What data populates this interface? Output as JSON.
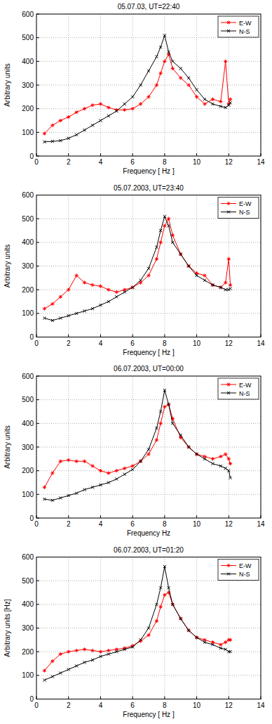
{
  "chart_data": [
    {
      "type": "line",
      "title": "05.07.03, UT=22:40",
      "x_label": "Frequency [ Hz ]",
      "y_label": "Arbitrary units",
      "x": [
        0.5,
        1,
        1.5,
        2,
        2.5,
        3,
        3.5,
        4,
        4.5,
        5,
        5.5,
        6,
        6.5,
        7,
        7.5,
        7.75,
        8,
        8.25,
        8.5,
        9,
        9.5,
        10,
        10.5,
        11,
        11.5,
        11.8,
        12,
        12.1
      ],
      "series": [
        {
          "name": "E-W",
          "color": "#ff0000",
          "marker": "star",
          "line_style": "solid",
          "values": [
            95,
            130,
            150,
            165,
            185,
            200,
            215,
            220,
            205,
            195,
            195,
            200,
            220,
            250,
            300,
            350,
            400,
            430,
            370,
            330,
            300,
            250,
            220,
            240,
            230,
            400,
            220,
            240
          ]
        },
        {
          "name": "N-S",
          "color": "#000000",
          "marker": "x",
          "line_style": "solid",
          "values": [
            60,
            62,
            65,
            75,
            90,
            110,
            130,
            150,
            170,
            190,
            220,
            250,
            300,
            360,
            420,
            460,
            510,
            440,
            400,
            370,
            330,
            280,
            240,
            220,
            210,
            205,
            215,
            225
          ]
        }
      ],
      "xlim": [
        0,
        14
      ],
      "ylim": [
        0,
        600
      ],
      "xticks": [
        0,
        2,
        4,
        6,
        8,
        10,
        12,
        14
      ],
      "yticks": [
        0,
        100,
        200,
        300,
        400,
        500,
        600
      ],
      "grid": true,
      "legend": "top-right"
    },
    {
      "type": "line",
      "title": "05.07.2003, UT=23:40",
      "x_label": "Frequency [ Hz ]",
      "y_label": "Arbitrary units",
      "x": [
        0.5,
        1,
        1.5,
        2,
        2.5,
        3,
        3.5,
        4,
        4.5,
        5,
        5.5,
        6,
        6.5,
        7,
        7.5,
        7.75,
        8,
        8.25,
        8.5,
        9,
        9.5,
        10,
        10.5,
        11,
        11.5,
        11.8,
        12,
        12.1
      ],
      "series": [
        {
          "name": "E-W",
          "color": "#ff0000",
          "marker": "star",
          "line_style": "solid",
          "values": [
            120,
            140,
            170,
            200,
            260,
            230,
            220,
            215,
            200,
            190,
            200,
            210,
            230,
            260,
            330,
            400,
            470,
            500,
            430,
            350,
            300,
            270,
            260,
            220,
            210,
            230,
            330,
            220
          ]
        },
        {
          "name": "N-S",
          "color": "#000000",
          "marker": "x",
          "line_style": "solid",
          "values": [
            80,
            70,
            80,
            90,
            100,
            110,
            120,
            135,
            150,
            170,
            190,
            210,
            240,
            290,
            380,
            450,
            510,
            470,
            400,
            350,
            300,
            260,
            240,
            220,
            210,
            200,
            200,
            205
          ]
        }
      ],
      "xlim": [
        0,
        14
      ],
      "ylim": [
        0,
        600
      ],
      "xticks": [
        0,
        2,
        4,
        6,
        8,
        10,
        12,
        14
      ],
      "yticks": [
        0,
        100,
        200,
        300,
        400,
        500,
        600
      ],
      "grid": true,
      "legend": "top-right"
    },
    {
      "type": "line",
      "title": "06.07.2003, UT=00:00",
      "x_label": "Frequency Hz",
      "y_label": "Arbitrary units",
      "x": [
        0.5,
        1,
        1.5,
        2,
        2.5,
        3,
        3.5,
        4,
        4.5,
        5,
        5.5,
        6,
        6.5,
        7,
        7.5,
        7.75,
        8,
        8.25,
        8.5,
        9,
        9.5,
        10,
        10.5,
        11,
        11.5,
        11.8,
        12,
        12.1
      ],
      "series": [
        {
          "name": "E-W",
          "color": "#ff0000",
          "marker": "star",
          "line_style": "solid",
          "values": [
            130,
            190,
            240,
            245,
            240,
            240,
            220,
            200,
            190,
            200,
            210,
            220,
            240,
            270,
            330,
            400,
            470,
            480,
            420,
            340,
            300,
            270,
            260,
            250,
            260,
            270,
            250,
            230
          ]
        },
        {
          "name": "N-S",
          "color": "#000000",
          "marker": "x",
          "line_style": "solid",
          "values": [
            80,
            75,
            85,
            95,
            105,
            120,
            130,
            140,
            150,
            165,
            185,
            205,
            240,
            290,
            380,
            450,
            540,
            480,
            400,
            350,
            300,
            270,
            250,
            230,
            220,
            210,
            200,
            170
          ]
        }
      ],
      "xlim": [
        0,
        14
      ],
      "ylim": [
        0,
        600
      ],
      "xticks": [
        0,
        2,
        4,
        6,
        8,
        10,
        12,
        14
      ],
      "yticks": [
        0,
        100,
        200,
        300,
        400,
        500,
        600
      ],
      "grid": true,
      "legend": "top-right"
    },
    {
      "type": "line",
      "title": "06.07.2003, UT=01:20",
      "x_label": "Frequency [ Hz ]",
      "y_label": "Arbitrary units [Hz]",
      "x": [
        0.5,
        1,
        1.5,
        2,
        2.5,
        3,
        3.5,
        4,
        4.5,
        5,
        5.5,
        6,
        6.5,
        7,
        7.5,
        7.75,
        8,
        8.25,
        8.5,
        9,
        9.5,
        10,
        10.5,
        11,
        11.5,
        11.8,
        12,
        12.1
      ],
      "series": [
        {
          "name": "E-W",
          "color": "#ff0000",
          "marker": "star",
          "line_style": "solid",
          "values": [
            120,
            160,
            190,
            200,
            205,
            210,
            205,
            200,
            205,
            210,
            215,
            225,
            245,
            270,
            330,
            390,
            440,
            450,
            400,
            340,
            290,
            260,
            250,
            240,
            230,
            240,
            250,
            250
          ]
        },
        {
          "name": "N-S",
          "color": "#000000",
          "marker": "x",
          "line_style": "solid",
          "values": [
            80,
            95,
            110,
            125,
            140,
            155,
            165,
            180,
            190,
            200,
            210,
            220,
            250,
            300,
            400,
            470,
            560,
            470,
            400,
            340,
            290,
            260,
            240,
            230,
            215,
            210,
            200,
            200
          ]
        }
      ],
      "xlim": [
        0,
        14
      ],
      "ylim": [
        0,
        600
      ],
      "xticks": [
        0,
        2,
        4,
        6,
        8,
        10,
        12,
        14
      ],
      "yticks": [
        0,
        100,
        200,
        300,
        400,
        500,
        600
      ],
      "grid": true,
      "legend": "top-right"
    }
  ]
}
